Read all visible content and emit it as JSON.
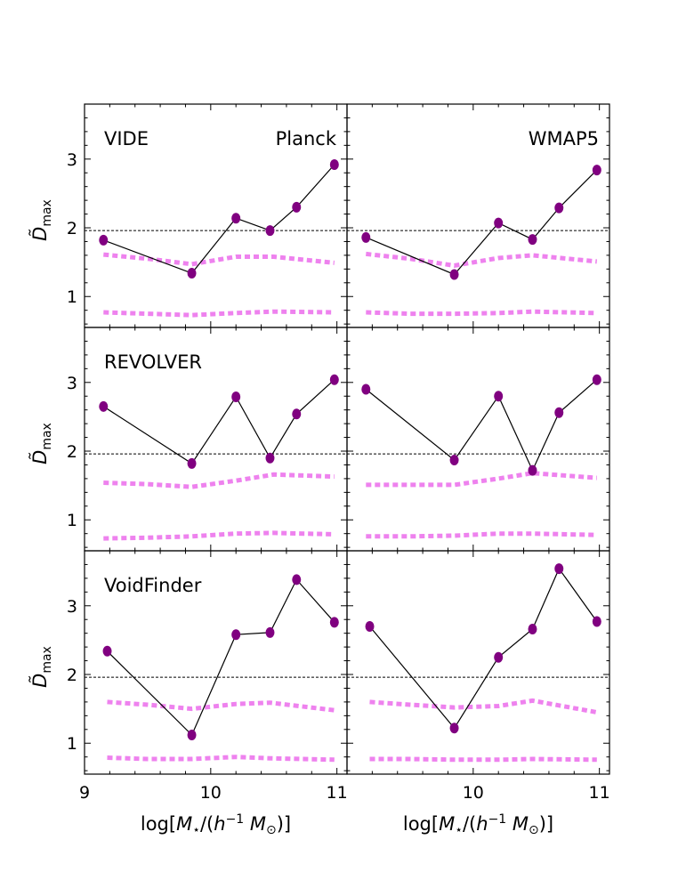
{
  "chart_data": {
    "type": "line",
    "x_axis": {
      "label": "log[M⋆/(h⁻¹ M⊙)]",
      "label_parts": [
        "log[",
        "M",
        "⋆",
        "/(",
        "h",
        "−1",
        " M",
        "⊙",
        ")]"
      ],
      "range": [
        9.0,
        11.08
      ],
      "ticks": [
        9,
        10,
        11
      ],
      "tick_labels": [
        "9",
        "10",
        "11"
      ]
    },
    "y_axis": {
      "label": "D̃max",
      "label_main": "D̃",
      "label_sub": "max",
      "range": [
        0.55,
        3.8
      ],
      "ticks": [
        1,
        2,
        3
      ],
      "tick_labels": [
        "1",
        "2",
        "3"
      ]
    },
    "threshold_line": 1.96,
    "colors": {
      "points": "#800080",
      "line": "#000000",
      "bands": "#ee82ee",
      "threshold": "#000000"
    },
    "panels": [
      {
        "id": "vide-planck",
        "row": 0,
        "col": 0,
        "left_label": "VIDE",
        "right_label": "Planck",
        "x": [
          9.15,
          9.85,
          10.2,
          10.47,
          10.68,
          10.98
        ],
        "values": [
          1.82,
          1.34,
          2.14,
          1.96,
          2.3,
          2.92
        ],
        "band_upper": [
          [
            9.15,
            1.61
          ],
          [
            9.5,
            1.55
          ],
          [
            9.85,
            1.47
          ],
          [
            10.2,
            1.58
          ],
          [
            10.5,
            1.58
          ],
          [
            10.98,
            1.49
          ]
        ],
        "band_lower": [
          [
            9.15,
            0.77
          ],
          [
            9.5,
            0.75
          ],
          [
            9.85,
            0.73
          ],
          [
            10.2,
            0.76
          ],
          [
            10.5,
            0.78
          ],
          [
            10.98,
            0.77
          ]
        ]
      },
      {
        "id": "vide-wmap5",
        "row": 0,
        "col": 1,
        "left_label": "",
        "right_label": "WMAP5",
        "x": [
          9.15,
          9.85,
          10.2,
          10.47,
          10.68,
          10.98
        ],
        "values": [
          1.86,
          1.32,
          2.07,
          1.83,
          2.29,
          2.84
        ],
        "band_upper": [
          [
            9.15,
            1.62
          ],
          [
            9.5,
            1.55
          ],
          [
            9.85,
            1.45
          ],
          [
            10.2,
            1.56
          ],
          [
            10.47,
            1.6
          ],
          [
            10.98,
            1.51
          ]
        ],
        "band_lower": [
          [
            9.15,
            0.77
          ],
          [
            9.5,
            0.75
          ],
          [
            9.85,
            0.75
          ],
          [
            10.2,
            0.76
          ],
          [
            10.47,
            0.78
          ],
          [
            10.98,
            0.76
          ]
        ]
      },
      {
        "id": "revolver-planck",
        "row": 1,
        "col": 0,
        "left_label": "REVOLVER",
        "right_label": "",
        "x": [
          9.15,
          9.85,
          10.2,
          10.47,
          10.68,
          10.98
        ],
        "values": [
          2.65,
          1.82,
          2.79,
          1.9,
          2.54,
          3.04
        ],
        "band_upper": [
          [
            9.15,
            1.54
          ],
          [
            9.5,
            1.52
          ],
          [
            9.85,
            1.48
          ],
          [
            10.2,
            1.57
          ],
          [
            10.5,
            1.66
          ],
          [
            10.98,
            1.63
          ]
        ],
        "band_lower": [
          [
            9.15,
            0.73
          ],
          [
            9.5,
            0.74
          ],
          [
            9.85,
            0.76
          ],
          [
            10.2,
            0.8
          ],
          [
            10.5,
            0.81
          ],
          [
            10.98,
            0.79
          ]
        ]
      },
      {
        "id": "revolver-wmap5",
        "row": 1,
        "col": 1,
        "left_label": "",
        "right_label": "",
        "x": [
          9.15,
          9.85,
          10.2,
          10.47,
          10.68,
          10.98
        ],
        "values": [
          2.9,
          1.87,
          2.8,
          1.72,
          2.56,
          3.04
        ],
        "band_upper": [
          [
            9.15,
            1.51
          ],
          [
            9.5,
            1.51
          ],
          [
            9.85,
            1.51
          ],
          [
            10.2,
            1.6
          ],
          [
            10.47,
            1.68
          ],
          [
            10.98,
            1.61
          ]
        ],
        "band_lower": [
          [
            9.15,
            0.76
          ],
          [
            9.5,
            0.76
          ],
          [
            9.85,
            0.77
          ],
          [
            10.2,
            0.8
          ],
          [
            10.47,
            0.8
          ],
          [
            10.98,
            0.78
          ]
        ]
      },
      {
        "id": "voidfinder-planck",
        "row": 2,
        "col": 0,
        "left_label": "VoidFinder",
        "right_label": "",
        "x": [
          9.18,
          9.85,
          10.2,
          10.47,
          10.68,
          10.98
        ],
        "values": [
          2.34,
          1.12,
          2.58,
          2.61,
          3.38,
          2.76
        ],
        "band_upper": [
          [
            9.18,
            1.6
          ],
          [
            9.5,
            1.56
          ],
          [
            9.85,
            1.5
          ],
          [
            10.2,
            1.57
          ],
          [
            10.47,
            1.59
          ],
          [
            10.98,
            1.48
          ]
        ],
        "band_lower": [
          [
            9.18,
            0.79
          ],
          [
            9.5,
            0.77
          ],
          [
            9.85,
            0.77
          ],
          [
            10.2,
            0.8
          ],
          [
            10.47,
            0.78
          ],
          [
            10.98,
            0.76
          ]
        ]
      },
      {
        "id": "voidfinder-wmap5",
        "row": 2,
        "col": 1,
        "left_label": "",
        "right_label": "",
        "x": [
          9.18,
          9.85,
          10.2,
          10.47,
          10.68,
          10.98
        ],
        "values": [
          2.7,
          1.22,
          2.25,
          2.66,
          3.54,
          2.77
        ],
        "band_upper": [
          [
            9.18,
            1.6
          ],
          [
            9.5,
            1.56
          ],
          [
            9.85,
            1.52
          ],
          [
            10.2,
            1.54
          ],
          [
            10.47,
            1.62
          ],
          [
            10.98,
            1.45
          ]
        ],
        "band_lower": [
          [
            9.18,
            0.77
          ],
          [
            9.5,
            0.77
          ],
          [
            9.85,
            0.76
          ],
          [
            10.2,
            0.76
          ],
          [
            10.47,
            0.77
          ],
          [
            10.98,
            0.76
          ]
        ]
      }
    ]
  }
}
